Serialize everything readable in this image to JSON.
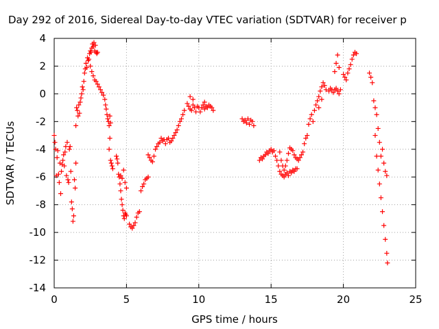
{
  "chart_data": {
    "type": "scatter",
    "title": "Day 292 of 2016, Sidereal Day-to-day VTEC variation (SDTVAR) for receiver p",
    "xlabel": "GPS time / hours",
    "ylabel": "SDTVAR / TECUs",
    "xlim": [
      0,
      25
    ],
    "ylim": [
      -14,
      4
    ],
    "xticks": [
      0,
      5,
      10,
      15,
      20,
      25
    ],
    "yticks": [
      -14,
      -12,
      -10,
      -8,
      -6,
      -4,
      -2,
      0,
      2,
      4
    ],
    "grid": true,
    "marker": "plus",
    "series": [
      {
        "name": "SDTVAR",
        "color": "#ff0000",
        "points": [
          [
            0.0,
            -3.0
          ],
          [
            0.05,
            -3.5
          ],
          [
            0.1,
            -4.0
          ],
          [
            0.15,
            -5.9
          ],
          [
            0.2,
            -4.6
          ],
          [
            0.25,
            -4.1
          ],
          [
            0.3,
            -5.8
          ],
          [
            0.35,
            -6.4
          ],
          [
            0.4,
            -5.0
          ],
          [
            0.45,
            -7.2
          ],
          [
            0.5,
            -5.6
          ],
          [
            0.55,
            -5.1
          ],
          [
            0.6,
            -4.8
          ],
          [
            0.65,
            -4.4
          ],
          [
            0.7,
            -5.2
          ],
          [
            0.75,
            -4.2
          ],
          [
            0.8,
            -3.8
          ],
          [
            0.85,
            -5.9
          ],
          [
            0.9,
            -3.5
          ],
          [
            0.95,
            -6.2
          ],
          [
            1.0,
            -6.4
          ],
          [
            1.05,
            -4.0
          ],
          [
            1.1,
            -3.8
          ],
          [
            1.15,
            -5.6
          ],
          [
            1.2,
            -7.8
          ],
          [
            1.25,
            -8.3
          ],
          [
            1.3,
            -9.2
          ],
          [
            1.35,
            -8.8
          ],
          [
            1.4,
            -6.2
          ],
          [
            1.45,
            -6.8
          ],
          [
            1.5,
            -5.0
          ],
          [
            1.5,
            -2.3
          ],
          [
            1.55,
            -1.0
          ],
          [
            1.6,
            -1.2
          ],
          [
            1.65,
            -1.6
          ],
          [
            1.7,
            -0.8
          ],
          [
            1.75,
            -1.4
          ],
          [
            1.8,
            -0.6
          ],
          [
            1.85,
            -0.3
          ],
          [
            1.9,
            0.0
          ],
          [
            1.95,
            0.5
          ],
          [
            2.0,
            0.3
          ],
          [
            2.05,
            0.9
          ],
          [
            2.1,
            1.5
          ],
          [
            2.15,
            1.8
          ],
          [
            2.2,
            2.2
          ],
          [
            2.25,
            1.9
          ],
          [
            2.3,
            2.6
          ],
          [
            2.35,
            2.4
          ],
          [
            2.4,
            2.5
          ],
          [
            2.45,
            2.9
          ],
          [
            2.5,
            3.1
          ],
          [
            2.55,
            3.0
          ],
          [
            2.6,
            3.3
          ],
          [
            2.65,
            3.6
          ],
          [
            2.7,
            3.4
          ],
          [
            2.75,
            3.7
          ],
          [
            2.8,
            3.1
          ],
          [
            2.85,
            3.5
          ],
          [
            2.9,
            3.0
          ],
          [
            2.95,
            2.9
          ],
          [
            3.0,
            3.0
          ],
          [
            2.5,
            2.0
          ],
          [
            2.6,
            1.6
          ],
          [
            2.7,
            1.3
          ],
          [
            2.8,
            1.0
          ],
          [
            2.9,
            0.9
          ],
          [
            3.0,
            0.7
          ],
          [
            3.1,
            0.5
          ],
          [
            3.2,
            0.3
          ],
          [
            3.3,
            0.1
          ],
          [
            3.4,
            -0.1
          ],
          [
            3.5,
            -0.4
          ],
          [
            3.55,
            -0.8
          ],
          [
            3.6,
            -1.1
          ],
          [
            3.65,
            -1.5
          ],
          [
            3.7,
            -1.8
          ],
          [
            3.75,
            -2.0
          ],
          [
            3.8,
            -2.3
          ],
          [
            3.85,
            -1.6
          ],
          [
            3.9,
            -2.1
          ],
          [
            3.8,
            -4.0
          ],
          [
            3.85,
            -3.2
          ],
          [
            3.9,
            -4.8
          ],
          [
            3.95,
            -5.0
          ],
          [
            4.0,
            -5.2
          ],
          [
            4.05,
            -5.4
          ],
          [
            4.3,
            -4.5
          ],
          [
            4.35,
            -4.7
          ],
          [
            4.4,
            -5.0
          ],
          [
            4.45,
            -5.8
          ],
          [
            4.5,
            -6.0
          ],
          [
            4.55,
            -6.5
          ],
          [
            4.6,
            -7.0
          ],
          [
            4.65,
            -7.6
          ],
          [
            4.7,
            -8.0
          ],
          [
            4.75,
            -8.4
          ],
          [
            4.8,
            -8.8
          ],
          [
            4.85,
            -9.0
          ],
          [
            4.9,
            -8.6
          ],
          [
            4.95,
            -8.7
          ],
          [
            5.0,
            -8.8
          ],
          [
            4.6,
            -5.9
          ],
          [
            4.7,
            -6.1
          ],
          [
            4.8,
            -5.5
          ],
          [
            4.9,
            -6.4
          ],
          [
            5.0,
            -6.8
          ],
          [
            5.2,
            -9.4
          ],
          [
            5.3,
            -9.6
          ],
          [
            5.4,
            -9.7
          ],
          [
            5.5,
            -9.5
          ],
          [
            5.6,
            -9.3
          ],
          [
            5.7,
            -8.9
          ],
          [
            5.8,
            -8.6
          ],
          [
            5.9,
            -8.5
          ],
          [
            6.0,
            -7.0
          ],
          [
            6.1,
            -6.7
          ],
          [
            6.2,
            -6.5
          ],
          [
            6.3,
            -6.2
          ],
          [
            6.4,
            -6.1
          ],
          [
            6.5,
            -6.0
          ],
          [
            6.5,
            -4.4
          ],
          [
            6.6,
            -4.6
          ],
          [
            6.7,
            -4.8
          ],
          [
            6.8,
            -4.9
          ],
          [
            6.9,
            -4.5
          ],
          [
            7.0,
            -4.0
          ],
          [
            7.1,
            -3.8
          ],
          [
            7.2,
            -3.6
          ],
          [
            7.3,
            -3.5
          ],
          [
            7.4,
            -3.2
          ],
          [
            7.5,
            -3.4
          ],
          [
            7.6,
            -3.3
          ],
          [
            7.7,
            -3.6
          ],
          [
            7.8,
            -3.3
          ],
          [
            7.9,
            -3.2
          ],
          [
            8.0,
            -3.5
          ],
          [
            8.1,
            -3.4
          ],
          [
            8.2,
            -3.2
          ],
          [
            8.3,
            -3.0
          ],
          [
            8.4,
            -2.8
          ],
          [
            8.5,
            -2.6
          ],
          [
            8.6,
            -2.3
          ],
          [
            8.7,
            -2.0
          ],
          [
            8.8,
            -1.8
          ],
          [
            8.9,
            -1.5
          ],
          [
            9.0,
            -1.2
          ],
          [
            9.2,
            -0.7
          ],
          [
            9.3,
            -0.9
          ],
          [
            9.4,
            -1.1
          ],
          [
            9.5,
            -1.2
          ],
          [
            9.6,
            -0.8
          ],
          [
            9.7,
            -1.0
          ],
          [
            9.8,
            -1.3
          ],
          [
            9.9,
            -0.9
          ],
          [
            10.0,
            -1.0
          ],
          [
            10.1,
            -1.3
          ],
          [
            10.2,
            -1.0
          ],
          [
            10.3,
            -0.8
          ],
          [
            10.4,
            -1.1
          ],
          [
            10.5,
            -0.9
          ],
          [
            10.6,
            -1.0
          ],
          [
            10.7,
            -0.8
          ],
          [
            10.8,
            -0.9
          ],
          [
            10.9,
            -1.0
          ],
          [
            11.0,
            -1.2
          ],
          [
            9.6,
            -0.4
          ],
          [
            10.4,
            -0.6
          ],
          [
            9.4,
            -0.2
          ],
          [
            13.0,
            -1.8
          ],
          [
            13.1,
            -2.0
          ],
          [
            13.2,
            -1.9
          ],
          [
            13.3,
            -2.1
          ],
          [
            13.4,
            -1.8
          ],
          [
            13.5,
            -2.2
          ],
          [
            13.6,
            -1.9
          ],
          [
            13.7,
            -2.0
          ],
          [
            13.8,
            -2.3
          ],
          [
            14.2,
            -4.8
          ],
          [
            14.3,
            -4.6
          ],
          [
            14.4,
            -4.7
          ],
          [
            14.5,
            -4.5
          ],
          [
            14.6,
            -4.4
          ],
          [
            14.7,
            -4.2
          ],
          [
            14.8,
            -4.3
          ],
          [
            14.9,
            -4.1
          ],
          [
            15.0,
            -4.0
          ],
          [
            15.1,
            -4.2
          ],
          [
            15.2,
            -4.1
          ],
          [
            15.3,
            -4.5
          ],
          [
            15.4,
            -4.8
          ],
          [
            15.5,
            -5.2
          ],
          [
            15.6,
            -5.6
          ],
          [
            15.7,
            -5.8
          ],
          [
            15.8,
            -5.9
          ],
          [
            15.9,
            -6.0
          ],
          [
            16.0,
            -5.8
          ],
          [
            16.1,
            -5.7
          ],
          [
            16.2,
            -5.9
          ],
          [
            16.3,
            -5.6
          ],
          [
            16.4,
            -5.7
          ],
          [
            16.5,
            -5.5
          ],
          [
            16.6,
            -5.6
          ],
          [
            16.7,
            -5.4
          ],
          [
            16.8,
            -5.4
          ],
          [
            15.6,
            -4.2
          ],
          [
            15.7,
            -4.8
          ],
          [
            15.8,
            -5.2
          ],
          [
            15.9,
            -5.5
          ],
          [
            16.0,
            -5.2
          ],
          [
            16.1,
            -4.8
          ],
          [
            16.2,
            -4.3
          ],
          [
            16.3,
            -3.9
          ],
          [
            16.4,
            -4.0
          ],
          [
            16.5,
            -4.1
          ],
          [
            16.6,
            -4.4
          ],
          [
            16.7,
            -4.6
          ],
          [
            16.8,
            -4.7
          ],
          [
            16.9,
            -4.8
          ],
          [
            17.0,
            -4.6
          ],
          [
            17.1,
            -4.4
          ],
          [
            17.2,
            -4.2
          ],
          [
            17.3,
            -3.6
          ],
          [
            17.4,
            -3.2
          ],
          [
            17.5,
            -3.0
          ],
          [
            17.6,
            -2.2
          ],
          [
            17.7,
            -1.8
          ],
          [
            17.8,
            -1.5
          ],
          [
            17.9,
            -2.0
          ],
          [
            18.0,
            -1.2
          ],
          [
            18.1,
            -0.8
          ],
          [
            18.2,
            -0.5
          ],
          [
            18.3,
            -0.2
          ],
          [
            18.4,
            0.2
          ],
          [
            18.5,
            0.5
          ],
          [
            18.6,
            0.8
          ],
          [
            18.7,
            0.6
          ],
          [
            18.8,
            0.3
          ],
          [
            18.5,
            -0.4
          ],
          [
            18.3,
            -1.0
          ],
          [
            19.0,
            0.2
          ],
          [
            19.1,
            0.4
          ],
          [
            19.2,
            0.3
          ],
          [
            19.3,
            0.1
          ],
          [
            19.4,
            0.3
          ],
          [
            19.5,
            0.4
          ],
          [
            19.6,
            0.2
          ],
          [
            19.7,
            0.0
          ],
          [
            19.8,
            0.3
          ],
          [
            19.4,
            1.6
          ],
          [
            19.5,
            2.2
          ],
          [
            19.6,
            2.8
          ],
          [
            19.7,
            1.9
          ],
          [
            20.0,
            1.4
          ],
          [
            20.1,
            1.2
          ],
          [
            20.2,
            1.0
          ],
          [
            20.3,
            1.5
          ],
          [
            20.4,
            1.8
          ],
          [
            20.5,
            2.1
          ],
          [
            20.6,
            2.5
          ],
          [
            20.7,
            2.8
          ],
          [
            20.8,
            3.0
          ],
          [
            20.9,
            2.9
          ],
          [
            21.8,
            1.5
          ],
          [
            21.9,
            1.2
          ],
          [
            22.0,
            0.8
          ],
          [
            22.1,
            -0.5
          ],
          [
            22.2,
            -1.0
          ],
          [
            22.3,
            -1.5
          ],
          [
            22.4,
            -2.5
          ],
          [
            22.5,
            -3.5
          ],
          [
            22.6,
            -4.5
          ],
          [
            22.7,
            -4.0
          ],
          [
            22.8,
            -5.0
          ],
          [
            22.9,
            -5.6
          ],
          [
            23.0,
            -5.9
          ],
          [
            22.2,
            -3.0
          ],
          [
            22.3,
            -4.5
          ],
          [
            22.4,
            -5.5
          ],
          [
            22.5,
            -6.5
          ],
          [
            22.6,
            -7.5
          ],
          [
            22.7,
            -8.5
          ],
          [
            22.8,
            -9.5
          ],
          [
            22.9,
            -10.5
          ],
          [
            23.0,
            -11.5
          ],
          [
            23.05,
            -12.2
          ]
        ]
      }
    ]
  }
}
